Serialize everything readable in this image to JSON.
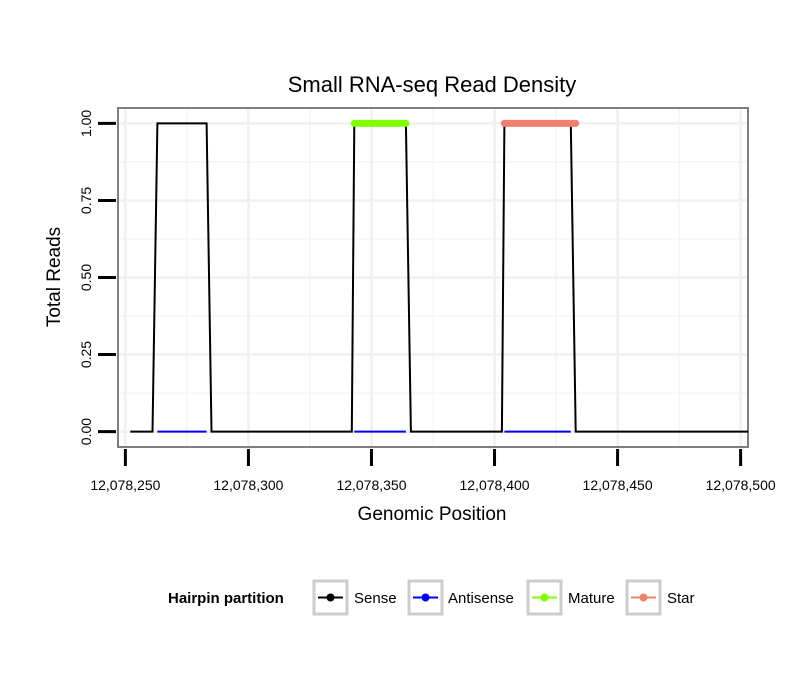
{
  "chart_data": {
    "type": "line",
    "title": "Small RNA-seq Read Density",
    "xlabel": "Genomic Position",
    "ylabel": "Total Reads",
    "xlim": [
      12078247,
      12078503
    ],
    "ylim": [
      -0.05,
      1.05
    ],
    "x_ticks": [
      12078250,
      12078300,
      12078350,
      12078400,
      12078450,
      12078500
    ],
    "x_tick_labels": [
      "12,078,250",
      "12,078,300",
      "12,078,350",
      "12,078,400",
      "12,078,450",
      "12,078,500"
    ],
    "y_ticks": [
      0,
      0.25,
      0.5,
      0.75,
      1.0
    ],
    "y_tick_labels": [
      "0.00",
      "0.25",
      "0.50",
      "0.75",
      "1.00"
    ],
    "grid": true,
    "legend": {
      "title": "Hairpin partition",
      "position": "bottom",
      "entries": [
        "Sense",
        "Antisense",
        "Mature",
        "Star"
      ]
    },
    "series": [
      {
        "name": "Sense",
        "color": "#000000",
        "x": [
          12078252,
          12078261,
          12078263,
          12078283,
          12078285,
          12078342,
          12078343,
          12078364,
          12078366,
          12078403,
          12078404,
          12078431,
          12078433,
          12078503
        ],
        "values": [
          0,
          0,
          1,
          1,
          0,
          0,
          1,
          1,
          0,
          0,
          1,
          1,
          0,
          0
        ]
      },
      {
        "name": "Antisense",
        "color": "#0000ff",
        "x": [
          12078263,
          12078283,
          12078343,
          12078364,
          12078404,
          12078431
        ],
        "values": [
          0,
          0,
          null,
          0,
          null,
          0
        ],
        "segments": [
          {
            "x": [
              12078263,
              12078283
            ],
            "values": [
              0,
              0
            ]
          },
          {
            "x": [
              12078343,
              12078364
            ],
            "values": [
              0,
              0
            ]
          },
          {
            "x": [
              12078404,
              12078431
            ],
            "values": [
              0,
              0
            ]
          }
        ]
      },
      {
        "name": "Mature",
        "color": "#7fff00",
        "x": [
          12078343,
          12078364
        ],
        "values": [
          1,
          1
        ]
      },
      {
        "name": "Star",
        "color": "#f08070",
        "x": [
          12078404,
          12078433
        ],
        "values": [
          1,
          1
        ]
      }
    ]
  }
}
